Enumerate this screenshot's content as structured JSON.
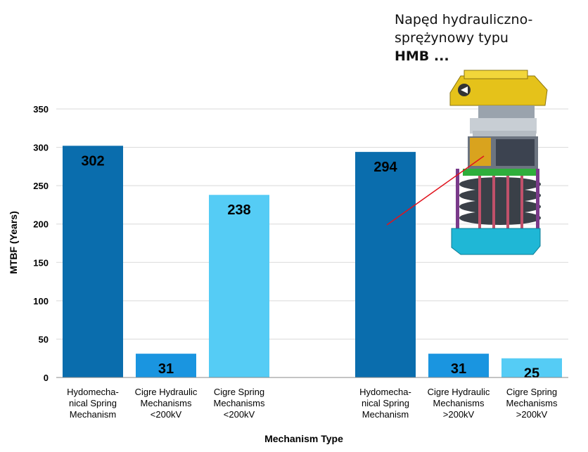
{
  "callout": {
    "line1": "Napęd hydrauliczno-",
    "line2": "sprężynowy typu",
    "line3": "HMB ..."
  },
  "chart_data": {
    "type": "bar",
    "xlabel": "Mechanism Type",
    "ylabel": "MTBF (Years)",
    "ylim": [
      0,
      350
    ],
    "yticks": [
      0,
      50,
      100,
      150,
      200,
      250,
      300,
      350
    ],
    "grid": true,
    "categories": [
      [
        "Hydomecha-",
        "nical Spring",
        "Mechanism"
      ],
      [
        "Cigre Hydraulic",
        "Mechanisms",
        "<200kV"
      ],
      [
        "Cigre Spring",
        "Mechanisms",
        "<200kV"
      ],
      [],
      [
        "Hydomecha-",
        "nical Spring",
        "Mechanism"
      ],
      [
        "Cigre Hydraulic",
        "Mechanisms",
        ">200kV"
      ],
      [
        "Cigre Spring",
        "Mechanisms",
        ">200kV"
      ]
    ],
    "values": [
      302,
      31,
      238,
      null,
      294,
      31,
      25
    ],
    "colors": [
      "#0A6DAD",
      "#1A95E0",
      "#55CCF5",
      null,
      "#0A6DAD",
      "#1A95E0",
      "#55CCF5"
    ]
  },
  "icons": {
    "mechanism_image": "hydraulic-spring-drive-illustration"
  }
}
